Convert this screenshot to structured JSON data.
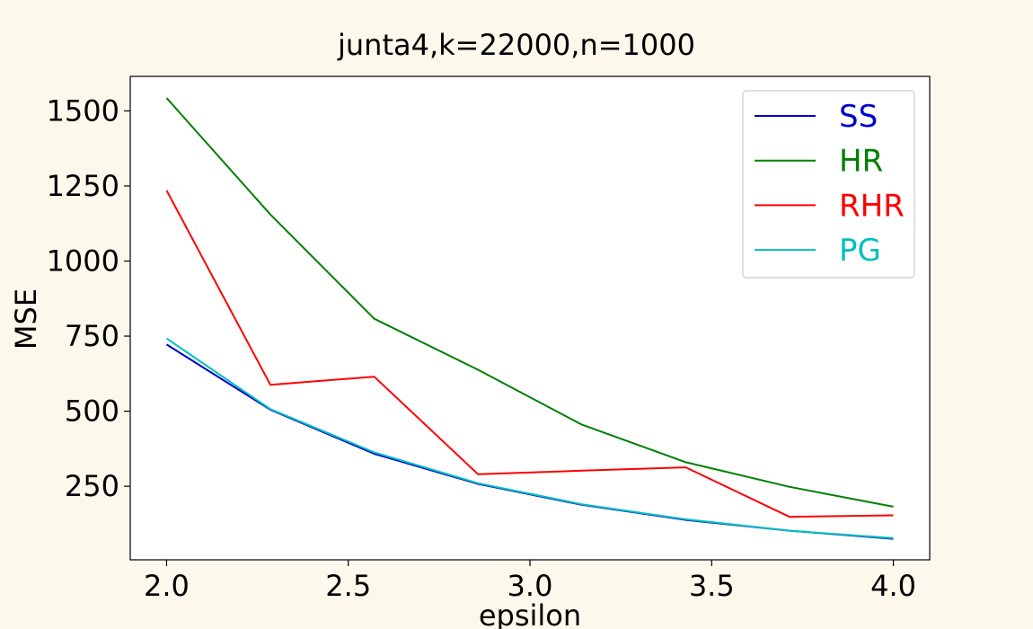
{
  "chart_data": {
    "type": "line",
    "title": "junta4,k=22000,n=1000",
    "xlabel": "epsilon",
    "ylabel": "MSE",
    "xlim": [
      1.9,
      4.1
    ],
    "ylim": [
      5,
      1615
    ],
    "x": [
      2.0,
      2.2857,
      2.5714,
      2.8571,
      3.1429,
      3.4286,
      3.7143,
      4.0
    ],
    "xticks": [
      2.0,
      2.5,
      3.0,
      3.5,
      4.0
    ],
    "xtick_labels": [
      "2.0",
      "2.5",
      "3.0",
      "3.5",
      "4.0"
    ],
    "yticks": [
      250,
      500,
      750,
      1000,
      1250,
      1500
    ],
    "ytick_labels": [
      "250",
      "500",
      "750",
      "1000",
      "1250",
      "1500"
    ],
    "legend_position": "top-right",
    "series": [
      {
        "name": "SS",
        "color": "#0000cc",
        "values": [
          722,
          505,
          358,
          258,
          188,
          138,
          102,
          75
        ]
      },
      {
        "name": "HR",
        "color": "#008000",
        "values": [
          1543,
          1155,
          808,
          638,
          455,
          330,
          248,
          182
        ]
      },
      {
        "name": "RHR",
        "color": "#ff0000",
        "values": [
          1235,
          588,
          615,
          290,
          302,
          313,
          148,
          153
        ]
      },
      {
        "name": "PG",
        "color": "#00bfbf",
        "values": [
          742,
          507,
          363,
          260,
          190,
          140,
          102,
          77
        ]
      }
    ]
  }
}
